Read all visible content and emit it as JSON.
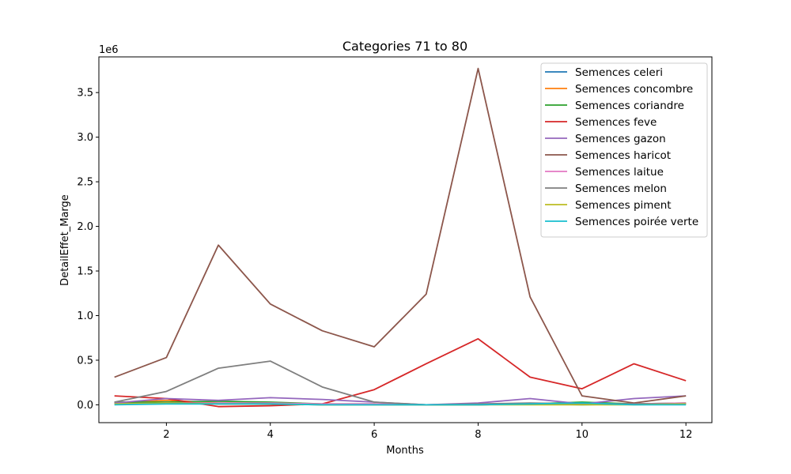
{
  "chart_data": {
    "type": "line",
    "title": "Categories 71 to 80",
    "xlabel": "Months",
    "ylabel": "DetailEffet_Marge",
    "y_offset_label": "1e6",
    "xlim": [
      0.7,
      12.5
    ],
    "ylim": [
      -0.2,
      3.9
    ],
    "x_ticks": [
      2,
      4,
      6,
      8,
      10,
      12
    ],
    "y_ticks": [
      0.0,
      0.5,
      1.0,
      1.5,
      2.0,
      2.5,
      3.0,
      3.5
    ],
    "y_tick_labels": [
      "0.0",
      "0.5",
      "1.0",
      "1.5",
      "2.0",
      "2.5",
      "3.0",
      "3.5"
    ],
    "grid": false,
    "legend_position": "top-right",
    "x": [
      1,
      2,
      3,
      4,
      5,
      6,
      7,
      8,
      9,
      10,
      11,
      12
    ],
    "series": [
      {
        "name": "Semences celeri",
        "color": "#1f77b4",
        "values": [
          0.02,
          0.03,
          0.01,
          0.01,
          0.0,
          0.0,
          0.0,
          0.0,
          0.01,
          0.0,
          0.01,
          0.01
        ]
      },
      {
        "name": "Semences concombre",
        "color": "#ff7f0e",
        "values": [
          0.02,
          0.05,
          0.02,
          0.02,
          0.0,
          0.01,
          0.0,
          0.0,
          0.01,
          0.01,
          0.01,
          0.01
        ]
      },
      {
        "name": "Semences coriandre",
        "color": "#2ca02c",
        "values": [
          0.03,
          0.03,
          0.04,
          0.03,
          0.01,
          0.01,
          0.0,
          0.0,
          0.01,
          0.03,
          0.01,
          0.02
        ]
      },
      {
        "name": "Semences feve",
        "color": "#d62728",
        "values": [
          0.1,
          0.07,
          -0.02,
          -0.01,
          0.01,
          0.17,
          0.46,
          0.74,
          0.31,
          0.18,
          0.46,
          0.27
        ]
      },
      {
        "name": "Semences gazon",
        "color": "#9467bd",
        "values": [
          0.02,
          0.07,
          0.05,
          0.08,
          0.06,
          0.03,
          0.0,
          0.02,
          0.07,
          0.01,
          0.07,
          0.1
        ]
      },
      {
        "name": "Semences haricot",
        "color": "#8c564b",
        "values": [
          0.31,
          0.53,
          1.79,
          1.13,
          0.83,
          0.65,
          1.24,
          3.77,
          1.21,
          0.1,
          0.02,
          0.1
        ]
      },
      {
        "name": "Semences laitue",
        "color": "#e377c2",
        "values": [
          0.01,
          0.02,
          0.02,
          0.02,
          0.01,
          0.01,
          0.0,
          0.01,
          0.01,
          0.01,
          0.01,
          0.02
        ]
      },
      {
        "name": "Semences melon",
        "color": "#7f7f7f",
        "values": [
          0.03,
          0.15,
          0.41,
          0.49,
          0.2,
          0.03,
          0.0,
          0.01,
          0.02,
          0.01,
          0.01,
          0.01
        ]
      },
      {
        "name": "Semences piment",
        "color": "#bcbd22",
        "values": [
          0.01,
          0.02,
          0.01,
          0.01,
          0.0,
          0.0,
          0.0,
          0.0,
          0.0,
          0.0,
          0.0,
          0.01
        ]
      },
      {
        "name": "Semences poirée verte",
        "color": "#17becf",
        "values": [
          0.0,
          0.01,
          0.01,
          0.01,
          0.0,
          0.0,
          0.0,
          0.0,
          0.01,
          0.02,
          0.0,
          0.0
        ]
      }
    ]
  }
}
